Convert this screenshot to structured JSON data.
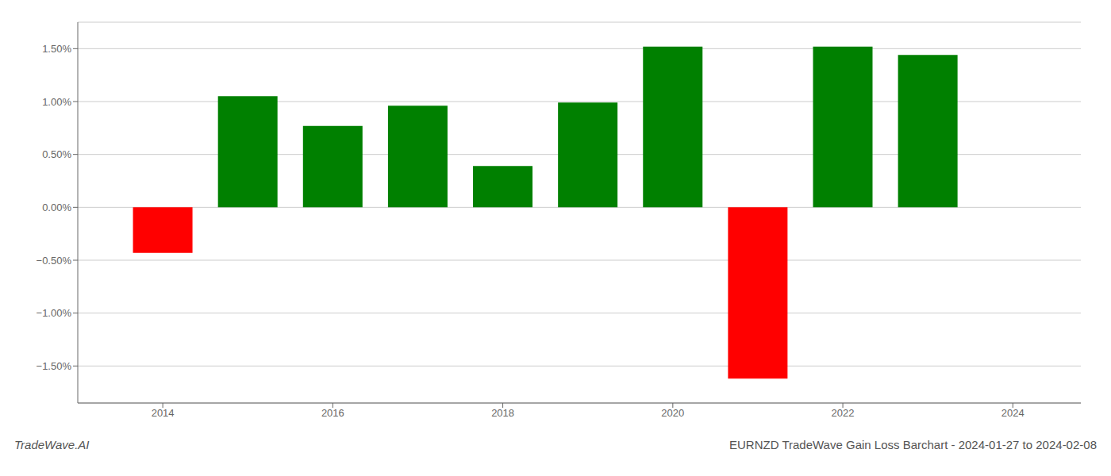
{
  "chart_data": {
    "type": "bar",
    "title": "EURNZD TradeWave Gain Loss Barchart - 2024-01-27 to 2024-02-08",
    "annotations": [
      "TradeWave.AI"
    ],
    "x": [
      2014,
      2015,
      2016,
      2017,
      2018,
      2019,
      2020,
      2021,
      2022,
      2023
    ],
    "values": [
      -0.43,
      1.05,
      0.77,
      0.96,
      0.39,
      0.99,
      1.52,
      -1.62,
      1.52,
      1.44
    ],
    "colors": [
      "red",
      "green",
      "green",
      "green",
      "green",
      "green",
      "green",
      "red",
      "green",
      "green"
    ],
    "xlim": [
      2013.0,
      2024.8
    ],
    "xticks": [
      2014,
      2016,
      2018,
      2020,
      2022,
      2024
    ],
    "ylim": [
      -1.85,
      1.75
    ],
    "yticks": [
      {
        "value": -1.5,
        "label": "−1.50%"
      },
      {
        "value": -1.0,
        "label": "−1.00%"
      },
      {
        "value": -0.5,
        "label": "−0.50%"
      },
      {
        "value": 0.0,
        "label": "0.00%"
      },
      {
        "value": 0.5,
        "label": "0.50%"
      },
      {
        "value": 1.0,
        "label": "1.00%"
      },
      {
        "value": 1.5,
        "label": "1.50%"
      }
    ],
    "grid": true
  }
}
